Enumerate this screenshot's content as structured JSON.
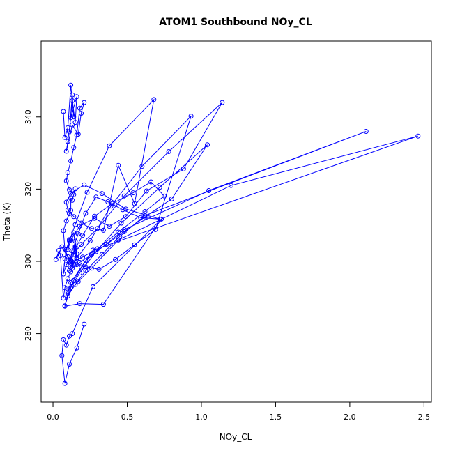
{
  "chart_data": {
    "type": "line",
    "title": "ATOM1 Southbound NOy_CL",
    "xlabel": "NOy_CL",
    "ylabel": "Theta (K)",
    "xlim": [
      -0.08,
      2.55
    ],
    "ylim": [
      261,
      361
    ],
    "x_ticks": [
      0.0,
      0.5,
      1.0,
      1.5,
      2.0,
      2.5
    ],
    "x_tick_labels": [
      "0.0",
      "0.5",
      "1.0",
      "1.5",
      "2.0",
      "2.5"
    ],
    "y_ticks": [
      280,
      300,
      320,
      340
    ],
    "y_tick_labels": [
      "280",
      "300",
      "320",
      "340"
    ],
    "grid": false,
    "legend": "none",
    "line_color": "#0000ff",
    "marker": "open-circle",
    "series": [
      {
        "x": [
          0.07,
          0.08,
          0.1,
          0.12,
          0.14,
          0.13,
          0.11,
          0.13,
          0.15,
          0.16,
          0.12,
          0.1,
          0.09,
          0.13,
          0.17,
          0.19,
          0.21,
          0.18,
          0.16,
          0.14,
          0.12,
          0.1,
          0.09,
          0.11,
          0.14,
          0.15,
          0.13,
          0.12,
          0.12,
          0.11,
          0.09,
          0.07,
          0.08,
          0.1,
          0.13,
          0.16,
          0.15,
          0.14,
          0.11,
          0.09,
          0.08,
          0.07,
          0.09,
          0.12,
          0.14,
          0.15,
          0.16,
          0.14,
          0.12,
          0.1,
          0.08,
          0.07,
          0.05,
          0.04,
          0.02,
          0.06,
          0.12,
          0.2,
          0.3,
          0.44,
          0.62,
          0.75,
          0.66,
          0.54,
          0.4,
          0.28,
          0.2,
          0.15,
          0.11,
          0.13,
          0.17,
          0.22,
          0.29,
          0.37,
          0.47,
          0.59,
          0.72,
          0.49,
          0.33,
          0.21,
          0.12,
          0.09,
          0.1,
          0.14,
          0.19,
          0.26,
          0.34,
          0.44,
          0.55,
          0.68,
          0.38,
          0.23,
          0.15,
          0.11,
          0.1,
          0.12,
          0.18,
          0.28,
          0.38,
          0.49,
          0.63,
          0.88,
          1.14,
          0.78,
          0.48,
          0.3,
          0.19,
          0.14,
          0.12,
          0.16,
          0.22,
          0.31,
          0.42,
          0.55,
          0.69,
          0.93,
          0.6,
          0.39,
          0.25,
          0.16,
          0.12,
          0.11,
          0.13,
          0.18,
          0.26,
          0.36,
          0.48,
          0.62,
          0.8,
          1.04,
          0.72,
          0.46,
          0.29,
          0.18,
          0.12,
          0.08,
          0.1,
          0.15,
          0.22,
          0.33,
          0.45,
          0.62,
          2.11,
          1.05,
          0.48,
          0.22,
          0.12,
          0.1,
          0.14,
          0.19,
          0.27,
          2.46,
          1.2,
          0.44,
          0.26,
          0.17,
          0.1,
          0.08,
          0.18,
          0.34,
          0.73,
          0.27,
          0.13,
          0.11,
          0.09,
          0.07,
          0.06,
          0.08,
          0.11,
          0.16,
          0.21
        ],
        "y": [
          341.5,
          334.3,
          337.0,
          348.8,
          340.0,
          346.1,
          335.9,
          344.5,
          338.5,
          345.6,
          339.8,
          333.2,
          330.5,
          337.8,
          335.2,
          341.0,
          344.0,
          342.4,
          335.0,
          331.5,
          327.8,
          324.6,
          322.3,
          319.8,
          318.5,
          320.1,
          316.9,
          317.4,
          314.1,
          313.2,
          311.2,
          308.5,
          303.4,
          301.3,
          299.8,
          300.6,
          304.1,
          307.9,
          306.0,
          303.3,
          300.7,
          296.5,
          299.1,
          300.4,
          302.8,
          305.6,
          302.1,
          299.4,
          297.1,
          295.2,
          292.7,
          289.8,
          301.6,
          303.0,
          300.5,
          304.0,
          299.6,
          301.2,
          303.5,
          308.1,
          313.8,
          318.1,
          322.0,
          319.0,
          316.0,
          312.5,
          307.2,
          303.6,
          299.8,
          302.9,
          307.6,
          313.3,
          317.8,
          316.5,
          314.3,
          312.1,
          311.7,
          314.5,
          318.8,
          321.2,
          318.9,
          316.4,
          314.2,
          312.4,
          310.6,
          309.1,
          308.6,
          326.6,
          316.0,
          344.8,
          332.0,
          319.1,
          310.2,
          305.7,
          303.2,
          305.9,
          309.8,
          311.9,
          309.7,
          312.4,
          319.5,
          325.6,
          344.0,
          330.4,
          318.1,
          309.1,
          304.7,
          301.9,
          300.2,
          299.1,
          298.5,
          297.8,
          300.5,
          304.6,
          308.8,
          340.2,
          326.3,
          315.3,
          305.7,
          300.9,
          298.3,
          297.4,
          298.1,
          299.7,
          301.8,
          304.7,
          308.2,
          312.3,
          317.3,
          332.3,
          320.5,
          310.6,
          302.7,
          296.8,
          292.7,
          287.7,
          290.4,
          293.6,
          297.4,
          301.9,
          306.9,
          312.7,
          336.0,
          319.6,
          308.8,
          300.2,
          294.1,
          291.5,
          294.7,
          298.2,
          303.1,
          334.7,
          321.0,
          305.9,
          298.1,
          294.4,
          291.0,
          287.6,
          288.3,
          288.1,
          311.7,
          293.0,
          280.0,
          279.3,
          276.8,
          278.3,
          273.9,
          266.2,
          271.5,
          276.0,
          282.6
        ]
      }
    ]
  }
}
